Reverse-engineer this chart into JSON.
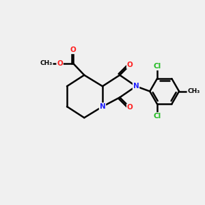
{
  "bg_color": "#f0f0f0",
  "bond_color": "#000000",
  "bond_width": 1.8,
  "atom_colors": {
    "N": "#2020ff",
    "O": "#ff2020",
    "Cl": "#22bb22",
    "C": "#000000"
  },
  "figsize": [
    3.0,
    3.0
  ],
  "dpi": 100
}
